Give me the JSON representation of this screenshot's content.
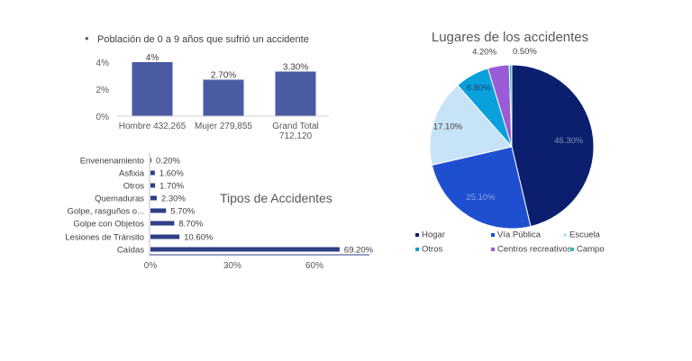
{
  "chart_data": [
    {
      "type": "bar",
      "title": "Población de 0 a 9 años que sufrió un accidente",
      "legend_marker": "•",
      "categories": [
        [
          "Hombre 432,265"
        ],
        [
          "Mujer 279,855"
        ],
        [
          "Grand Total",
          "712,120"
        ]
      ],
      "values": [
        4.0,
        2.7,
        3.3
      ],
      "data_labels": [
        "4%",
        "2.70%",
        "3.30%"
      ],
      "y_ticks": [
        "0%",
        "2%",
        "4%"
      ],
      "y_tick_values": [
        0,
        2,
        4
      ],
      "ylim": [
        0,
        4.6
      ],
      "grid": false,
      "color": "#4a5ba3"
    },
    {
      "type": "bar",
      "orientation": "horizontal",
      "title": "Tipos de Accidentes",
      "categories": [
        "Envenenamiento",
        "Asfixia",
        "Otros",
        "Quemaduras",
        "Golpe, rasguños o...",
        "Golpe con Objetos",
        "Lesiones de Tránsito",
        "Caídas"
      ],
      "values": [
        0.2,
        1.6,
        1.7,
        2.3,
        5.7,
        8.7,
        10.6,
        69.2
      ],
      "data_labels": [
        "0.20%",
        "1.60%",
        "1.70%",
        "2.30%",
        "5.70%",
        "8.70%",
        "10.60%",
        "69.20%"
      ],
      "x_ticks": [
        "0%",
        "30%",
        "60%"
      ],
      "x_tick_values": [
        0,
        30,
        60
      ],
      "xlim": [
        0,
        75
      ],
      "grid": false,
      "color": "#2f3f86"
    },
    {
      "type": "pie",
      "title": "Lugares  de los accidentes",
      "slices": [
        {
          "name": "Hogar",
          "value": 46.3,
          "label": "46.30%",
          "color": "#0b1f6e"
        },
        {
          "name": "Vía Pública",
          "value": 25.1,
          "label": "25.10%",
          "color": "#1f4fd1"
        },
        {
          "name": "Escuela",
          "value": 17.1,
          "label": "17.10%",
          "color": "#c7e3f7"
        },
        {
          "name": "Otros",
          "value": 6.8,
          "label": "6.80%",
          "color": "#0aa0dc"
        },
        {
          "name": "Centros recreativos",
          "value": 4.2,
          "label": "4.20%",
          "color": "#9a5bd6"
        },
        {
          "name": "Campo",
          "value": 0.5,
          "label": "0.50%",
          "color": "#2cbfb3"
        }
      ],
      "legend_position": "bottom"
    }
  ]
}
